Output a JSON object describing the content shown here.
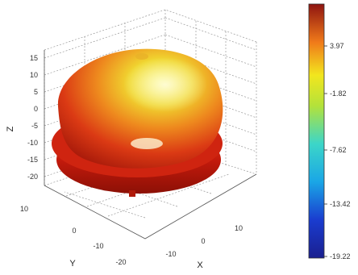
{
  "chart_data": {
    "type": "surface-3d",
    "xlabel": "X",
    "ylabel": "Y",
    "zlabel": "Z",
    "x_ticks": [
      "-10",
      "0",
      "10"
    ],
    "y_ticks": [
      "-20",
      "-10",
      "0",
      "10"
    ],
    "z_ticks": [
      "15",
      "10",
      "5",
      "0",
      "-5",
      "-10",
      "-15",
      "-20"
    ],
    "colorbar": {
      "min": -19.22,
      "max": 10.0,
      "tick_labels": [
        "3.97",
        "-1.82",
        "-7.62",
        "-13.42",
        "-19.22"
      ],
      "colormap": "jet"
    },
    "grid": true,
    "surface_color_range": [
      "#c8190f",
      "#f2e830"
    ]
  }
}
